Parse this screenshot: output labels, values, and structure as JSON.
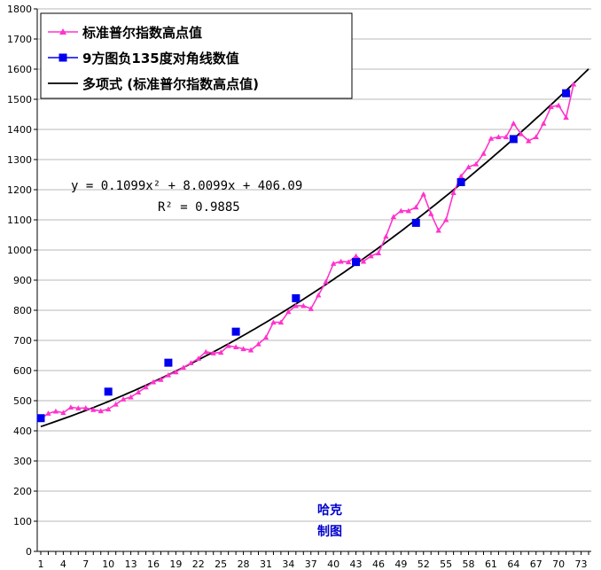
{
  "chart_data": {
    "type": "line",
    "ylim": [
      0,
      1800
    ],
    "yticks": [
      0,
      100,
      200,
      300,
      400,
      500,
      600,
      700,
      800,
      900,
      1000,
      1100,
      1200,
      1300,
      1400,
      1500,
      1600,
      1700,
      1800
    ],
    "xlim": [
      1,
      74
    ],
    "xticks": [
      1,
      4,
      7,
      10,
      13,
      16,
      19,
      22,
      25,
      28,
      31,
      34,
      37,
      40,
      43,
      46,
      49,
      52,
      55,
      58,
      61,
      64,
      67,
      70,
      73
    ],
    "grid": "horizontal",
    "legend_position": "top-left",
    "series": [
      {
        "name": "标准普尔指数高点值",
        "color": "#ff33cc",
        "marker": "triangle",
        "x": [
          1,
          2,
          3,
          4,
          5,
          6,
          7,
          8,
          9,
          10,
          11,
          12,
          13,
          14,
          15,
          16,
          17,
          18,
          19,
          20,
          21,
          22,
          23,
          24,
          25,
          26,
          27,
          28,
          29,
          30,
          31,
          32,
          33,
          34,
          35,
          36,
          37,
          38,
          39,
          40,
          41,
          42,
          43,
          44,
          45,
          46,
          47,
          48,
          49,
          50,
          51,
          52,
          53,
          54,
          55,
          56,
          57,
          58,
          59,
          60,
          61,
          62,
          63,
          64,
          65,
          66,
          67,
          68,
          69,
          70,
          71,
          72
        ],
        "values": [
          440,
          458,
          465,
          460,
          478,
          475,
          476,
          470,
          466,
          472,
          488,
          505,
          512,
          528,
          545,
          562,
          570,
          585,
          595,
          610,
          625,
          640,
          662,
          658,
          660,
          682,
          678,
          672,
          668,
          688,
          710,
          760,
          760,
          795,
          815,
          815,
          805,
          850,
          895,
          955,
          962,
          960,
          980,
          962,
          980,
          990,
          1045,
          1110,
          1130,
          1130,
          1142,
          1185,
          1120,
          1065,
          1100,
          1190,
          1245,
          1275,
          1285,
          1320,
          1370,
          1375,
          1375,
          1420,
          1385,
          1362,
          1375,
          1420,
          1475,
          1480,
          1440,
          1550
        ]
      },
      {
        "name": "9方图负135度对角线数值",
        "color": "#0000ee",
        "marker": "square",
        "x": [
          1,
          10,
          18,
          27,
          35,
          43,
          51,
          57,
          64,
          71
        ],
        "values": [
          442,
          530,
          626,
          729,
          840,
          960,
          1090,
          1225,
          1368,
          1520
        ]
      },
      {
        "name": "多项式 (标准普尔指数高点值)",
        "color": "#000000",
        "marker": "none",
        "trendline": {
          "type": "poly2",
          "a": 0.1099,
          "b": 8.0099,
          "c": 406.09,
          "x_range": [
            1,
            74
          ]
        }
      }
    ],
    "annotations": {
      "equation": "y = 0.1099x² + 8.0099x + 406.09",
      "r2": "R² = 0.9885"
    }
  },
  "watermark": {
    "line1": "哈克",
    "line2": "制图"
  }
}
